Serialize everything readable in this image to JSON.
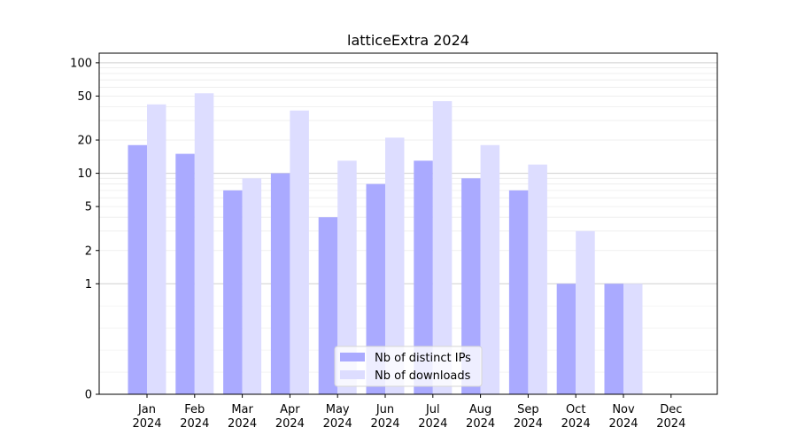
{
  "chart_data": {
    "type": "bar",
    "title": "latticeExtra 2024",
    "xlabel": "",
    "ylabel": "",
    "y_scale": "symlog",
    "y_ticks": [
      0,
      1,
      2,
      5,
      10,
      20,
      50,
      100
    ],
    "y_tick_labels": [
      "0",
      "1",
      "2",
      "5",
      "10",
      "20",
      "50",
      "100"
    ],
    "ylim": [
      0,
      120
    ],
    "grid": true,
    "legend_position": "bottom-center",
    "categories": [
      "Jan\n2024",
      "Feb\n2024",
      "Mar\n2024",
      "Apr\n2024",
      "May\n2024",
      "Jun\n2024",
      "Jul\n2024",
      "Aug\n2024",
      "Sep\n2024",
      "Oct\n2024",
      "Nov\n2024",
      "Dec\n2024"
    ],
    "series": [
      {
        "name": "Nb of distinct IPs",
        "color": "#aaaaff",
        "values": [
          18,
          15,
          7,
          10,
          4,
          8,
          13,
          9,
          7,
          1,
          1,
          0
        ]
      },
      {
        "name": "Nb of downloads",
        "color": "#ddddff",
        "values": [
          42,
          53,
          9,
          37,
          13,
          21,
          45,
          18,
          12,
          3,
          1,
          0
        ]
      }
    ]
  }
}
